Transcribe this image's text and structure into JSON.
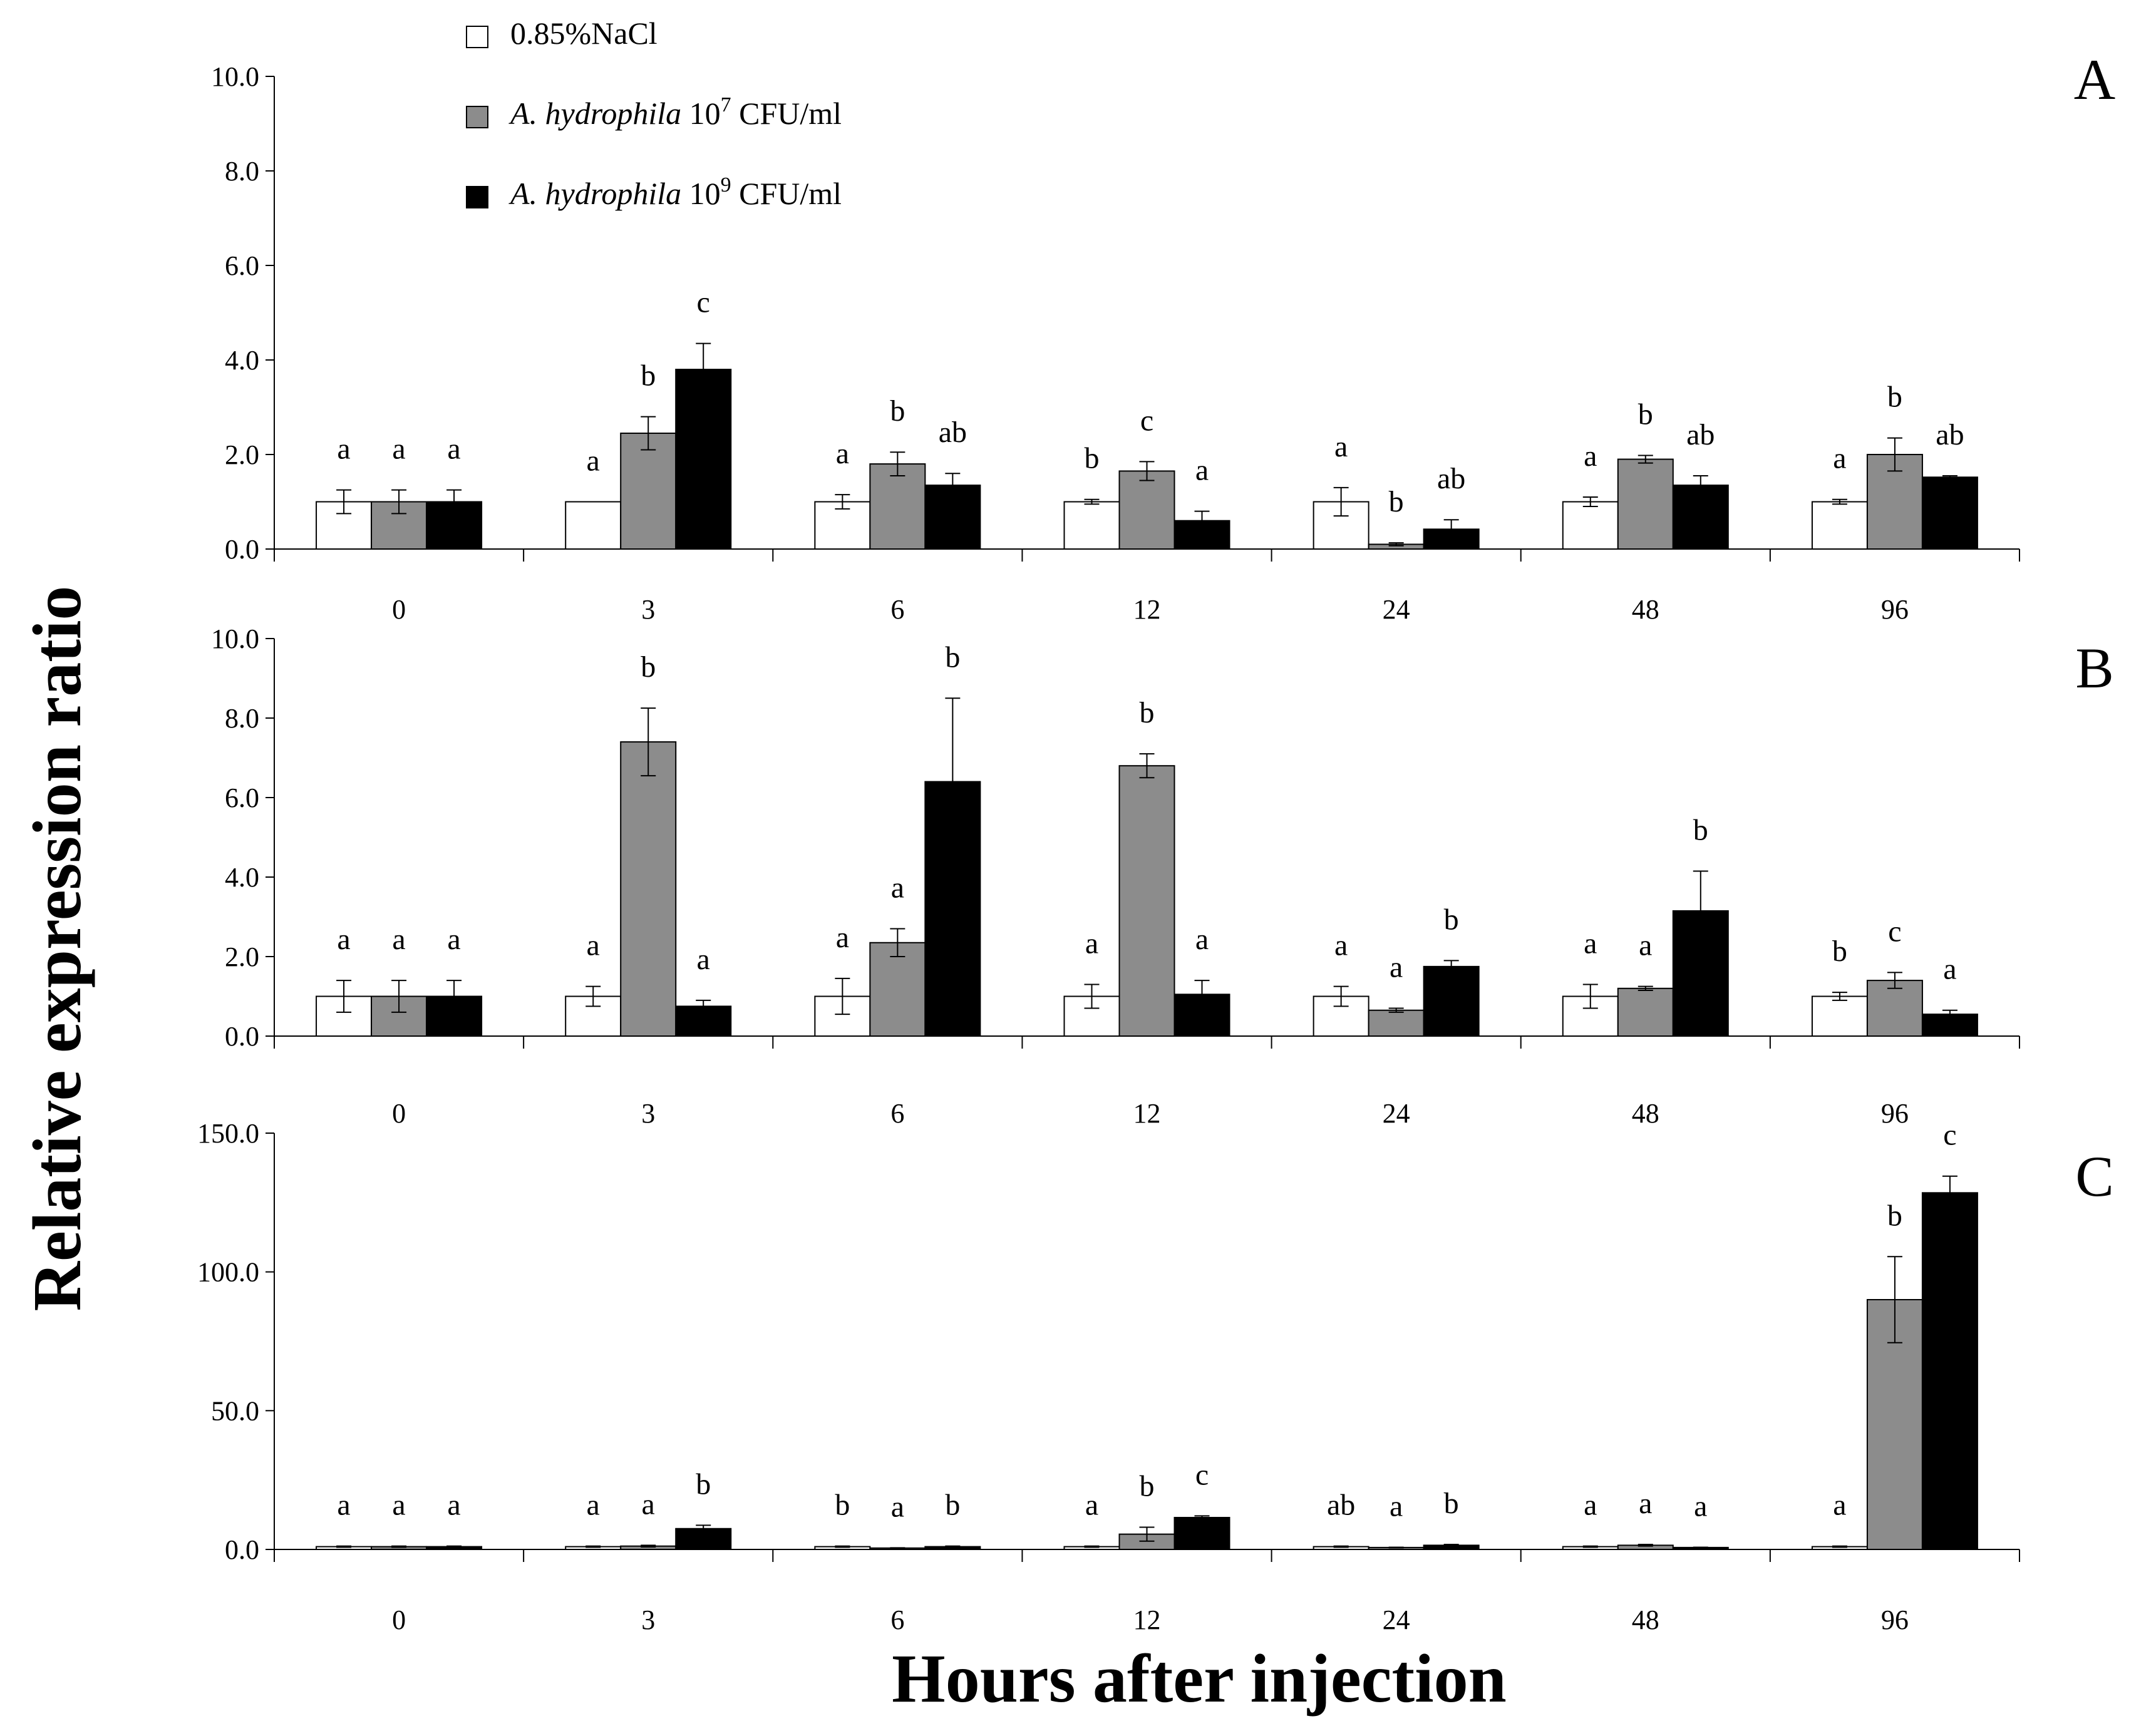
{
  "chart_data": [
    {
      "panel": "A",
      "type": "bar",
      "categories": [
        "0",
        "3",
        "6",
        "12",
        "24",
        "48",
        "96"
      ],
      "ylim": [
        0,
        10
      ],
      "yticks": [
        "0.0",
        "2.0",
        "4.0",
        "6.0",
        "8.0",
        "10.0"
      ],
      "series": [
        {
          "name": "0.85%NaCl",
          "color": "#ffffff",
          "values": [
            1.0,
            1.0,
            1.0,
            1.0,
            1.0,
            1.0,
            1.0
          ],
          "errors": [
            0.25,
            0.0,
            0.15,
            0.05,
            0.3,
            0.1,
            0.05
          ],
          "letters": [
            "a",
            "a",
            "a",
            "b",
            "a",
            "a",
            "a"
          ]
        },
        {
          "name": "A. hydrophila 10^7 CFU/ml",
          "color": "#8c8c8c",
          "values": [
            1.0,
            2.45,
            1.8,
            1.65,
            0.1,
            1.9,
            2.0
          ],
          "errors": [
            0.25,
            0.35,
            0.25,
            0.2,
            0.03,
            0.08,
            0.35
          ],
          "letters": [
            "a",
            "b",
            "b",
            "c",
            "b",
            "b",
            "b"
          ]
        },
        {
          "name": "A. hydrophila 10^9 CFU/ml",
          "color": "#000000",
          "values": [
            1.0,
            3.8,
            1.35,
            0.6,
            0.42,
            1.35,
            1.52
          ],
          "errors": [
            0.25,
            0.55,
            0.25,
            0.2,
            0.2,
            0.2,
            0.03
          ],
          "letters": [
            "a",
            "c",
            "ab",
            "a",
            "ab",
            "ab",
            "ab"
          ]
        }
      ]
    },
    {
      "panel": "B",
      "type": "bar",
      "categories": [
        "0",
        "3",
        "6",
        "12",
        "24",
        "48",
        "96"
      ],
      "ylim": [
        0,
        10
      ],
      "yticks": [
        "0.0",
        "2.0",
        "4.0",
        "6.0",
        "8.0",
        "10.0"
      ],
      "series": [
        {
          "name": "0.85%NaCl",
          "color": "#ffffff",
          "values": [
            1.0,
            1.0,
            1.0,
            1.0,
            1.0,
            1.0,
            1.0
          ],
          "errors": [
            0.4,
            0.25,
            0.45,
            0.3,
            0.25,
            0.3,
            0.1
          ],
          "letters": [
            "a",
            "a",
            "a",
            "a",
            "a",
            "a",
            "b"
          ]
        },
        {
          "name": "A. hydrophila 10^7 CFU/ml",
          "color": "#8c8c8c",
          "values": [
            1.0,
            7.4,
            2.35,
            6.8,
            0.65,
            1.2,
            1.4
          ],
          "errors": [
            0.4,
            0.85,
            0.35,
            0.3,
            0.05,
            0.05,
            0.2
          ],
          "letters": [
            "a",
            "b",
            "a",
            "b",
            "a",
            "a",
            "c"
          ]
        },
        {
          "name": "A. hydrophila 10^9 CFU/ml",
          "color": "#000000",
          "values": [
            1.0,
            0.75,
            6.4,
            1.05,
            1.75,
            3.15,
            0.55
          ],
          "errors": [
            0.4,
            0.15,
            2.1,
            0.35,
            0.15,
            1.0,
            0.1
          ],
          "letters": [
            "a",
            "a",
            "b",
            "a",
            "b",
            "b",
            "a"
          ]
        }
      ]
    },
    {
      "panel": "C",
      "type": "bar",
      "categories": [
        "0",
        "3",
        "6",
        "12",
        "24",
        "48",
        "96"
      ],
      "ylim": [
        0,
        150
      ],
      "yticks": [
        "0.0",
        "50.0",
        "100.0",
        "150.0"
      ],
      "series": [
        {
          "name": "0.85%NaCl",
          "color": "#ffffff",
          "values": [
            1.0,
            1.0,
            1.0,
            1.0,
            1.0,
            1.0,
            1.0
          ],
          "errors": [
            0.2,
            0.2,
            0.2,
            0.2,
            0.2,
            0.2,
            0.2
          ],
          "letters": [
            "a",
            "a",
            "b",
            "a",
            "ab",
            "a",
            "a"
          ]
        },
        {
          "name": "A. hydrophila 10^7 CFU/ml",
          "color": "#8c8c8c",
          "values": [
            1.0,
            1.2,
            0.5,
            5.5,
            0.7,
            1.5,
            90.0
          ],
          "errors": [
            0.2,
            0.3,
            0.1,
            2.5,
            0.1,
            0.3,
            15.5
          ],
          "letters": [
            "a",
            "a",
            "a",
            "b",
            "a",
            "a",
            "b"
          ]
        },
        {
          "name": "A. hydrophila 10^9 CFU/ml",
          "color": "#000000",
          "values": [
            1.0,
            7.5,
            1.0,
            11.5,
            1.5,
            0.7,
            128.5
          ],
          "errors": [
            0.2,
            1.2,
            0.2,
            0.6,
            0.3,
            0.1,
            6.0
          ],
          "letters": [
            "a",
            "b",
            "b",
            "c",
            "b",
            "a",
            "c"
          ]
        }
      ]
    }
  ],
  "legend": {
    "items": [
      {
        "prefix": "",
        "main": "0.85%NaCl",
        "sup": "",
        "rest": "",
        "color": "#ffffff"
      },
      {
        "prefix": "A. hydrophila",
        "main": "10",
        "sup": "7",
        "rest": "CFU/ml",
        "color": "#8c8c8c"
      },
      {
        "prefix": "A. hydrophila",
        "main": "10",
        "sup": "9",
        "rest": "CFU/ml",
        "color": "#000000"
      }
    ]
  },
  "y_axis_title": "Relative expression ratio",
  "x_axis_title": "Hours after injection"
}
